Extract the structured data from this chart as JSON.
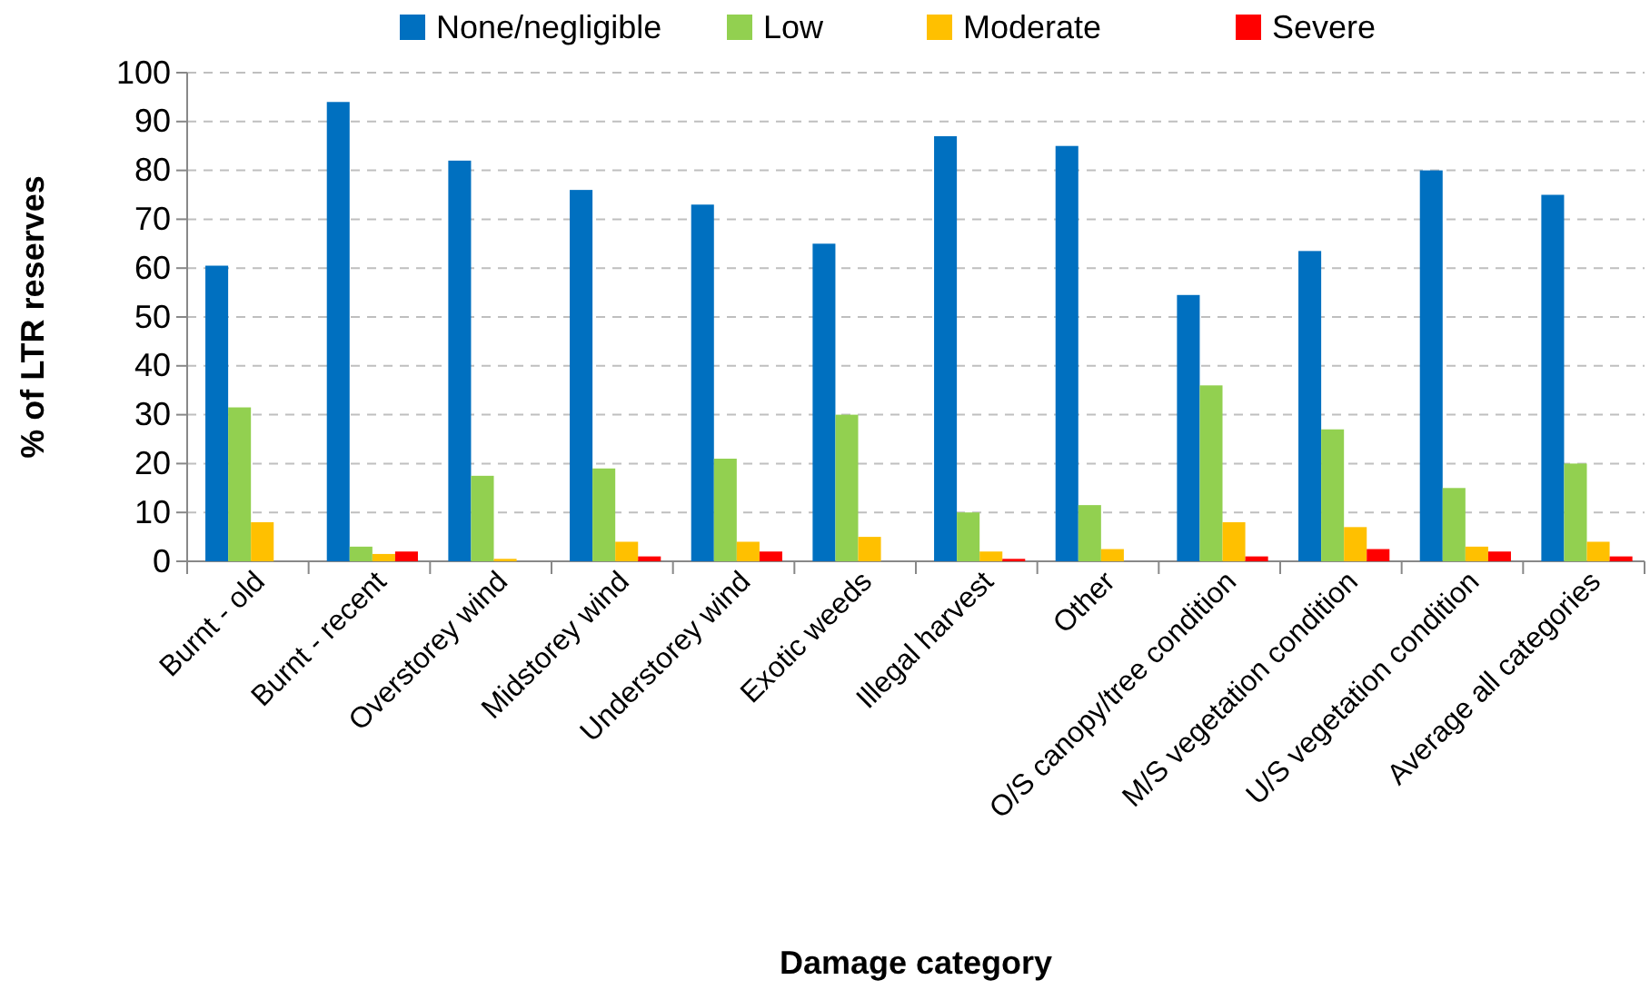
{
  "chart_data": {
    "type": "bar",
    "xlabel": "Damage category",
    "ylabel": "% of LTR reserves",
    "categories": [
      "Burnt - old",
      "Burnt - recent",
      "Overstorey wind",
      "Midstorey wind",
      "Understorey wind",
      "Exotic weeds",
      "Illegal harvest",
      "Other",
      "O/S canopy/tree condition",
      "M/S vegetation condition",
      "U/S vegetation condition",
      "Average all categories"
    ],
    "series": [
      {
        "name": "None/negligible",
        "color": "#0070c0",
        "values": [
          60.5,
          94,
          82,
          76,
          73,
          65,
          87,
          85,
          54.5,
          63.5,
          80,
          75
        ]
      },
      {
        "name": "Low",
        "color": "#92d050",
        "values": [
          31.5,
          3,
          17.5,
          19,
          21,
          30,
          10,
          11.5,
          36,
          27,
          15,
          20
        ]
      },
      {
        "name": "Moderate",
        "color": "#ffc000",
        "values": [
          8,
          1.5,
          0.5,
          4,
          4,
          5,
          2,
          2.5,
          8,
          7,
          3,
          4
        ]
      },
      {
        "name": "Severe",
        "color": "#ff0000",
        "values": [
          0,
          2,
          0,
          1,
          2,
          0,
          0.5,
          0,
          1,
          2.5,
          2,
          1
        ]
      }
    ],
    "ylim": [
      0,
      100
    ],
    "yticks": [
      0,
      10,
      20,
      30,
      40,
      50,
      60,
      70,
      80,
      90,
      100
    ],
    "grid": "y",
    "legend": "top"
  }
}
